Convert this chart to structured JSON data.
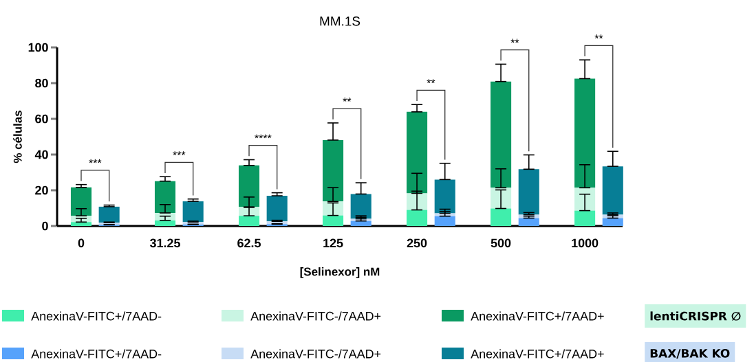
{
  "chart_data": {
    "type": "bar",
    "stacked": true,
    "title": "MM.1S",
    "xlabel": "[Selinexor] nM",
    "ylabel": "% células",
    "categories": [
      "0",
      null,
      null,
      "31.25",
      null,
      null,
      "62.5",
      null,
      null,
      "125",
      null,
      null,
      "250",
      null,
      null,
      "500",
      null,
      null,
      "1000",
      null
    ],
    "ylim": [
      0,
      100
    ],
    "yticks": [
      0,
      20,
      40,
      60,
      80,
      100
    ],
    "legend": "bottom",
    "series": [
      {
        "name": "AnexinaV-FITC+/7AAD-",
        "color": "#40eeac",
        "values": [
          2.2,
          null,
          null,
          3.1,
          null,
          null,
          5.7,
          null,
          null,
          5.9,
          null,
          null,
          9.0,
          null,
          null,
          9.8,
          null,
          null,
          8.6,
          null
        ],
        "errors": [
          [
            2.2,
            4.3
          ],
          null,
          null,
          [
            3.1,
            5.5
          ],
          null,
          null,
          [
            5.7,
            10.4
          ],
          null,
          null,
          [
            5.9,
            12.9
          ],
          null,
          null,
          [
            9.0,
            19.5
          ],
          null,
          null,
          [
            9.8,
            20.2
          ],
          null,
          null,
          [
            8.6,
            17.8
          ],
          null
        ]
      },
      {
        "name": "AnexinaV-FITC-/7AAD+",
        "color": "#c9f5e3",
        "values": [
          3.5,
          null,
          null,
          4.2,
          null,
          null,
          5.0,
          null,
          null,
          7.8,
          null,
          null,
          9.3,
          null,
          null,
          11.6,
          null,
          null,
          12.8,
          null
        ],
        "errors": [
          [
            5.7,
            9.7
          ],
          null,
          null,
          [
            7.3,
            12.0
          ],
          null,
          null,
          [
            10.7,
            16.2
          ],
          null,
          null,
          [
            13.7,
            21.5
          ],
          null,
          null,
          [
            18.3,
            29.5
          ],
          null,
          null,
          [
            21.4,
            32.0
          ],
          null,
          null,
          [
            21.4,
            34.3
          ],
          null
        ]
      },
      {
        "name": "AnexinaV-FITC+/7AAD+",
        "color": "#0a9a62",
        "values": [
          15.9,
          null,
          null,
          17.8,
          null,
          null,
          23.2,
          null,
          null,
          34.4,
          null,
          null,
          45.6,
          null,
          null,
          59.5,
          null,
          null,
          61.1,
          null
        ],
        "errors": [
          [
            21.6,
            23.2
          ],
          null,
          null,
          [
            25.1,
            27.6
          ],
          null,
          null,
          [
            33.9,
            37.1
          ],
          null,
          null,
          [
            48.1,
            57.7
          ],
          null,
          null,
          [
            63.9,
            68.0
          ],
          null,
          null,
          [
            80.9,
            90.6
          ],
          null,
          null,
          [
            82.5,
            93.0
          ],
          null
        ]
      },
      {
        "name": "AnexinaV-FITC+/7AAD-",
        "color": "#56a2fb",
        "values": [
          null,
          0.6,
          null,
          null,
          0.8,
          null,
          null,
          1.0,
          null,
          null,
          2.8,
          null,
          null,
          5.5,
          null,
          null,
          4.4,
          null,
          null,
          4.4
        ],
        "errors": [
          null,
          [
            0.6,
            0.8
          ],
          null,
          null,
          [
            0.8,
            1.0
          ],
          null,
          null,
          [
            1.0,
            1.3
          ],
          null,
          null,
          [
            2.8,
            4.9
          ],
          null,
          null,
          [
            5.5,
            8.1
          ],
          null,
          null,
          [
            4.4,
            5.5
          ],
          null,
          null,
          [
            4.4,
            5.8
          ]
        ]
      },
      {
        "name": "AnexinaV-FITC-/7AAD+",
        "color": "#c7dcf5",
        "values": [
          null,
          1.3,
          null,
          null,
          1.4,
          null,
          null,
          1.6,
          null,
          null,
          1.2,
          null,
          null,
          1.6,
          null,
          null,
          1.9,
          null,
          null,
          1.9
        ],
        "errors": [
          null,
          [
            1.9,
            2.2
          ],
          null,
          null,
          [
            2.2,
            2.7
          ],
          null,
          null,
          [
            2.6,
            3.2
          ],
          null,
          null,
          [
            4.0,
            5.7
          ],
          null,
          null,
          [
            7.1,
            9.4
          ],
          null,
          null,
          [
            6.3,
            7.5
          ],
          null,
          null,
          [
            6.3,
            7.3
          ]
        ]
      },
      {
        "name": "AnexinaV-FITC+/7AAD+",
        "color": "#077e96",
        "values": [
          null,
          8.9,
          null,
          null,
          11.6,
          null,
          null,
          14.3,
          null,
          null,
          13.9,
          null,
          null,
          18.9,
          null,
          null,
          25.5,
          null,
          null,
          27.1
        ],
        "errors": [
          null,
          [
            10.8,
            11.7
          ],
          null,
          null,
          [
            13.8,
            15.1
          ],
          null,
          null,
          [
            16.9,
            18.6
          ],
          null,
          null,
          [
            17.9,
            24.2
          ],
          null,
          null,
          [
            26.0,
            35.1
          ],
          null,
          null,
          [
            31.8,
            39.8
          ],
          null,
          null,
          [
            33.4,
            41.8
          ]
        ]
      }
    ],
    "annotations": [
      "lentiCRISPR ∅",
      "BAX/BAK KO",
      "***",
      "***",
      "****",
      "**",
      "**",
      "**",
      "**"
    ]
  }
}
